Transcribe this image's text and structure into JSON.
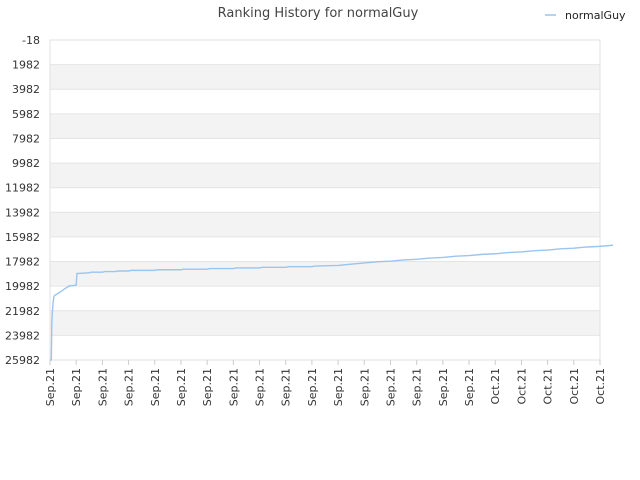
{
  "chart_data": {
    "type": "line",
    "title": "Ranking History for normalGuy",
    "xlabel": "",
    "ylabel": "",
    "y_inverted": true,
    "ylim": [
      -18,
      25982
    ],
    "y_ticks": [
      -18,
      1982,
      3982,
      5982,
      7982,
      9982,
      11982,
      13982,
      15982,
      17982,
      19982,
      21982,
      23982,
      25982
    ],
    "x_tick_labels": [
      "Sep.21",
      "Sep.21",
      "Sep.21",
      "Sep.21",
      "Sep.21",
      "Sep.21",
      "Sep.21",
      "Sep.21",
      "Sep.21",
      "Sep.21",
      "Sep.21",
      "Sep.21",
      "Sep.21",
      "Sep.21",
      "Sep.21",
      "Sep.21",
      "Sep.21",
      "Oct.21",
      "Oct.21",
      "Oct.21",
      "Oct.21",
      "Oct.21"
    ],
    "grid": "horizontal bands",
    "legend_position": "top-right",
    "series": [
      {
        "name": "normalGuy",
        "color": "#99c5ef",
        "x": [
          0,
          0.05,
          0.07,
          0.09,
          0.12,
          0.15,
          0.2,
          0.25,
          0.5,
          0.52,
          0.75,
          0.8,
          1.0,
          1.03,
          1.1,
          1.5,
          1.55,
          2.0,
          2.1,
          2.5,
          2.6,
          3.0,
          3.1,
          4.0,
          4.1,
          5.0,
          5.1,
          6.0,
          6.1,
          7.0,
          7.1,
          8.0,
          8.1,
          9.0,
          9.1,
          10.0,
          10.1,
          11.0,
          11.5,
          12.0,
          12.5,
          13.0,
          13.5,
          14.0,
          14.5,
          15.0,
          15.5,
          16.0,
          16.5,
          17.0,
          17.5,
          18.0,
          18.5,
          19.0,
          19.5,
          20.0,
          20.5,
          21.0,
          21.5
        ],
        "y": [
          25982,
          25982,
          23000,
          22100,
          21300,
          20800,
          20700,
          20650,
          20300,
          20250,
          19950,
          19950,
          19900,
          18950,
          18950,
          18900,
          18850,
          18850,
          18800,
          18800,
          18750,
          18750,
          18700,
          18700,
          18650,
          18650,
          18600,
          18600,
          18550,
          18550,
          18500,
          18500,
          18450,
          18450,
          18400,
          18400,
          18350,
          18300,
          18200,
          18100,
          18000,
          17950,
          17850,
          17800,
          17700,
          17650,
          17550,
          17500,
          17400,
          17350,
          17250,
          17200,
          17100,
          17050,
          16950,
          16900,
          16800,
          16750,
          16650
        ]
      }
    ]
  }
}
